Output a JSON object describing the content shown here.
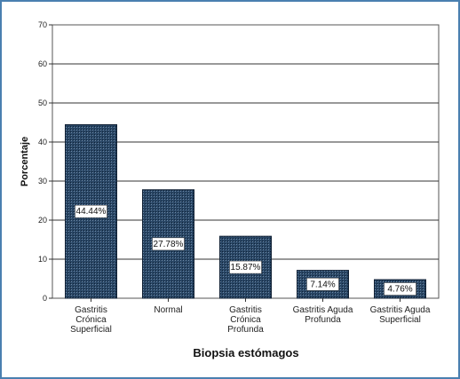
{
  "chart_data": {
    "type": "bar",
    "xlabel": "Biopsia estómagos",
    "ylabel": "Porcentaje",
    "ylim": [
      0,
      70
    ],
    "yticks": [
      0,
      10,
      20,
      30,
      40,
      50,
      60,
      70
    ],
    "grid": true,
    "categories": [
      [
        "Gastritis",
        "Crónica",
        "Superficial"
      ],
      [
        "Normal"
      ],
      [
        "Gastritis",
        "Crónica",
        "Profunda"
      ],
      [
        "Gastritis Aguda",
        "Profunda"
      ],
      [
        "Gastritis Aguda",
        "Superficial"
      ]
    ],
    "values": [
      44.44,
      27.78,
      15.87,
      7.14,
      4.76
    ],
    "data_labels": [
      "44.44%",
      "27.78%",
      "15.87%",
      "7.14%",
      "4.76%"
    ],
    "bar_color": "#1f3b5c"
  }
}
